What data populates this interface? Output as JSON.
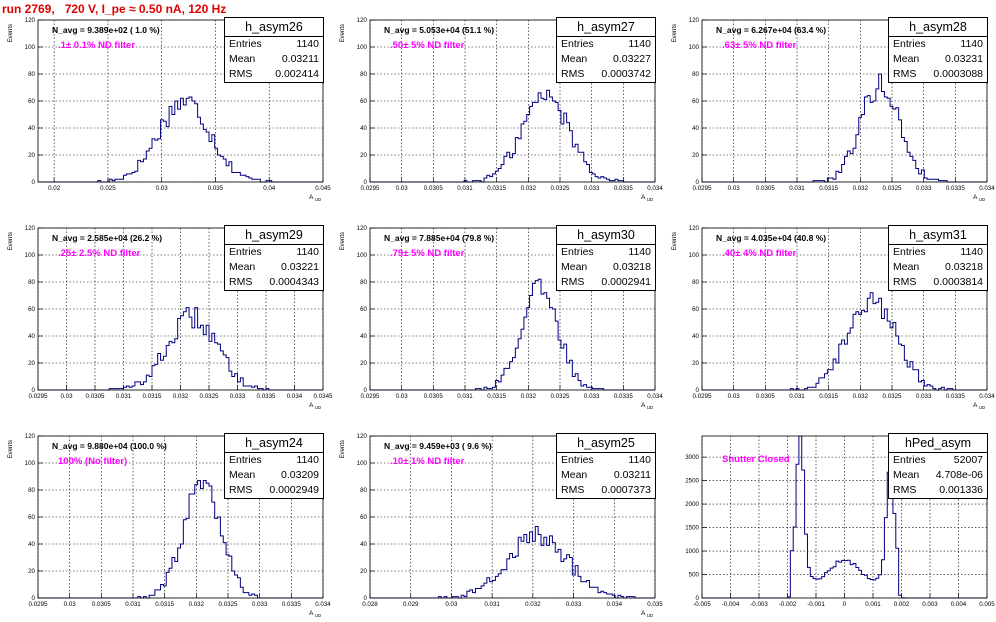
{
  "title": "run 2769,   720 V, I_pe ≈ 0.50 nA, 120 Hz",
  "chart_data": [
    {
      "type": "histogram",
      "name": "h_asym26",
      "entries": "1140",
      "mean": "0.03211",
      "rms": "0.002414",
      "navg": "N_avg = 9.389e+02 ( 1.0 %)",
      "filter": ".1± 0.1% ND filter",
      "xlim": [
        0.0185,
        0.045
      ],
      "ylim": [
        0,
        120
      ],
      "xticks": [
        0.02,
        0.025,
        0.03,
        0.035,
        0.04,
        0.045
      ],
      "xtick_labels": [
        "0.02",
        "0.025",
        "0.03",
        "0.035",
        "0.04",
        "0.045"
      ],
      "yticks": [
        0,
        20,
        40,
        60,
        80,
        100,
        120
      ],
      "ytick_labels": [
        "0",
        "20",
        "40",
        "60",
        "80",
        "100",
        "120"
      ],
      "ylabel": "Events",
      "xlabel": "A_UD",
      "nbins": 100,
      "peak": 60,
      "shape": "gauss"
    },
    {
      "type": "histogram",
      "name": "h_asym27",
      "entries": "1140",
      "mean": "0.03227",
      "rms": "0.0003742",
      "navg": "N_avg = 5.053e+04 (51.1 %)",
      "filter": ".50± 5% ND filter",
      "xlim": [
        0.0295,
        0.034
      ],
      "ylim": [
        0,
        120
      ],
      "xticks": [
        0.0295,
        0.03,
        0.0305,
        0.031,
        0.0315,
        0.032,
        0.0325,
        0.033,
        0.0335,
        0.034
      ],
      "xtick_labels": [
        "0.0295",
        "0.03",
        "0.0305",
        "0.031",
        "0.0315",
        "0.032",
        "0.0325",
        "0.033",
        "0.0335",
        "0.034"
      ],
      "yticks": [
        0,
        20,
        40,
        60,
        80,
        100,
        120
      ],
      "ytick_labels": [
        "0",
        "20",
        "40",
        "60",
        "80",
        "100",
        "120"
      ],
      "ylabel": "Events",
      "xlabel": "A_UD",
      "nbins": 100,
      "peak": 64,
      "shape": "gauss"
    },
    {
      "type": "histogram",
      "name": "h_asym28",
      "entries": "1140",
      "mean": "0.03231",
      "rms": "0.0003088",
      "navg": "N_avg = 6.267e+04 (63.4 %)",
      "filter": ".63± 5% ND filter",
      "xlim": [
        0.0295,
        0.034
      ],
      "ylim": [
        0,
        120
      ],
      "xticks": [
        0.0295,
        0.03,
        0.0305,
        0.031,
        0.0315,
        0.032,
        0.0325,
        0.033,
        0.0335,
        0.034
      ],
      "xtick_labels": [
        "0.0295",
        "0.03",
        "0.0305",
        "0.031",
        "0.0315",
        "0.032",
        "0.0325",
        "0.033",
        "0.0335",
        "0.034"
      ],
      "yticks": [
        0,
        20,
        40,
        60,
        80,
        100,
        120
      ],
      "ytick_labels": [
        "0",
        "20",
        "40",
        "60",
        "80",
        "100",
        "120"
      ],
      "ylabel": "Events",
      "xlabel": "A_UD",
      "nbins": 100,
      "peak": 72,
      "shape": "gauss"
    },
    {
      "type": "histogram",
      "name": "h_asym29",
      "entries": "1140",
      "mean": "0.03221",
      "rms": "0.0004343",
      "navg": "N_avg = 2.585e+04 (26.2 %)",
      "filter": ".25± 2.5% ND filter",
      "xlim": [
        0.0295,
        0.0345
      ],
      "ylim": [
        0,
        120
      ],
      "xticks": [
        0.0295,
        0.03,
        0.0305,
        0.031,
        0.0315,
        0.032,
        0.0325,
        0.033,
        0.0335,
        0.034,
        0.0345
      ],
      "xtick_labels": [
        "0.0295",
        "0.03",
        "0.0305",
        "0.031",
        "0.0315",
        "0.032",
        "0.0325",
        "0.033",
        "0.0335",
        "0.034",
        "0.0345"
      ],
      "yticks": [
        0,
        20,
        40,
        60,
        80,
        100,
        120
      ],
      "ytick_labels": [
        "0",
        "20",
        "40",
        "60",
        "80",
        "100",
        "120"
      ],
      "ylabel": "Events",
      "xlabel": "A_UD",
      "nbins": 100,
      "peak": 54,
      "shape": "gauss"
    },
    {
      "type": "histogram",
      "name": "h_asym30",
      "entries": "1140",
      "mean": "0.03218",
      "rms": "0.0002941",
      "navg": "N_avg = 7.885e+04 (79.8 %)",
      "filter": ".79± 5% ND filter",
      "xlim": [
        0.0295,
        0.034
      ],
      "ylim": [
        0,
        120
      ],
      "xticks": [
        0.0295,
        0.03,
        0.0305,
        0.031,
        0.0315,
        0.032,
        0.0325,
        0.033,
        0.0335,
        0.034
      ],
      "xtick_labels": [
        "0.0295",
        "0.03",
        "0.0305",
        "0.031",
        "0.0315",
        "0.032",
        "0.0325",
        "0.033",
        "0.0335",
        "0.034"
      ],
      "yticks": [
        0,
        20,
        40,
        60,
        80,
        100,
        120
      ],
      "ytick_labels": [
        "0",
        "20",
        "40",
        "60",
        "80",
        "100",
        "120"
      ],
      "ylabel": "Events",
      "xlabel": "A_UD",
      "nbins": 100,
      "peak": 74,
      "shape": "gauss"
    },
    {
      "type": "histogram",
      "name": "h_asym31",
      "entries": "1140",
      "mean": "0.03218",
      "rms": "0.0003814",
      "navg": "N_avg = 4.035e+04 (40.8 %)",
      "filter": ".40± 4% ND filter",
      "xlim": [
        0.0295,
        0.034
      ],
      "ylim": [
        0,
        120
      ],
      "xticks": [
        0.0295,
        0.03,
        0.0305,
        0.031,
        0.0315,
        0.032,
        0.0325,
        0.033,
        0.0335,
        0.034
      ],
      "xtick_labels": [
        "0.0295",
        "0.03",
        "0.0305",
        "0.031",
        "0.0315",
        "0.032",
        "0.0325",
        "0.033",
        "0.0335",
        "0.034"
      ],
      "yticks": [
        0,
        20,
        40,
        60,
        80,
        100,
        120
      ],
      "ytick_labels": [
        "0",
        "20",
        "40",
        "60",
        "80",
        "100",
        "120"
      ],
      "ylabel": "Events",
      "xlabel": "A_UD",
      "nbins": 100,
      "peak": 68,
      "shape": "gauss"
    },
    {
      "type": "histogram",
      "name": "h_asym24",
      "entries": "1140",
      "mean": "0.03209",
      "rms": "0.0002949",
      "navg": "N_avg = 9.880e+04 (100.0 %)",
      "filter": "100% (No filter)",
      "xlim": [
        0.0295,
        0.034
      ],
      "ylim": [
        0,
        120
      ],
      "xticks": [
        0.0295,
        0.03,
        0.0305,
        0.031,
        0.0315,
        0.032,
        0.0325,
        0.033,
        0.0335,
        0.034
      ],
      "xtick_labels": [
        "0.0295",
        "0.03",
        "0.0305",
        "0.031",
        "0.0315",
        "0.032",
        "0.0325",
        "0.033",
        "0.0335",
        "0.034"
      ],
      "yticks": [
        0,
        20,
        40,
        60,
        80,
        100,
        120
      ],
      "ytick_labels": [
        "0",
        "20",
        "40",
        "60",
        "80",
        "100",
        "120"
      ],
      "ylabel": "Events",
      "xlabel": "A_UD",
      "nbins": 100,
      "peak": 82,
      "shape": "gauss"
    },
    {
      "type": "histogram",
      "name": "h_asym25",
      "entries": "1140",
      "mean": "0.03211",
      "rms": "0.0007373",
      "navg": "N_avg = 9.459e+03 ( 9.6 %)",
      "filter": ".10± 1% ND filter",
      "xlim": [
        0.028,
        0.035
      ],
      "ylim": [
        0,
        120
      ],
      "xticks": [
        0.028,
        0.029,
        0.03,
        0.031,
        0.032,
        0.033,
        0.034,
        0.035
      ],
      "xtick_labels": [
        "0.028",
        "0.029",
        "0.03",
        "0.031",
        "0.032",
        "0.033",
        "0.034",
        "0.035"
      ],
      "yticks": [
        0,
        20,
        40,
        60,
        80,
        100,
        120
      ],
      "ytick_labels": [
        "0",
        "20",
        "40",
        "60",
        "80",
        "100",
        "120"
      ],
      "ylabel": "Events",
      "xlabel": "A_UD",
      "nbins": 100,
      "peak": 46,
      "shape": "gauss"
    },
    {
      "type": "histogram",
      "name": "hPed_asym",
      "entries": "52007",
      "mean": "4.708e-06",
      "rms": "0.001336",
      "navg": "",
      "filter": "Shutter Closed",
      "xlim": [
        -0.005,
        0.005
      ],
      "ylim": [
        0,
        3450
      ],
      "xticks": [
        -0.005,
        -0.004,
        -0.003,
        -0.002,
        -0.001,
        0,
        0.001,
        0.002,
        0.003,
        0.004,
        0.005
      ],
      "xtick_labels": [
        "-0.005",
        "-0.004",
        "-0.003",
        "-0.002",
        "-0.001",
        "0",
        "0.001",
        "0.002",
        "0.003",
        "0.004",
        "0.005"
      ],
      "yticks": [
        0,
        500,
        1000,
        1500,
        2000,
        2500,
        3000
      ],
      "ytick_labels": [
        "0",
        "500",
        "1000",
        "1500",
        "2000",
        "2500",
        "3000"
      ],
      "ylabel": "",
      "xlabel": "",
      "nbins": 100,
      "peak": 3300,
      "shape": "ped"
    }
  ]
}
